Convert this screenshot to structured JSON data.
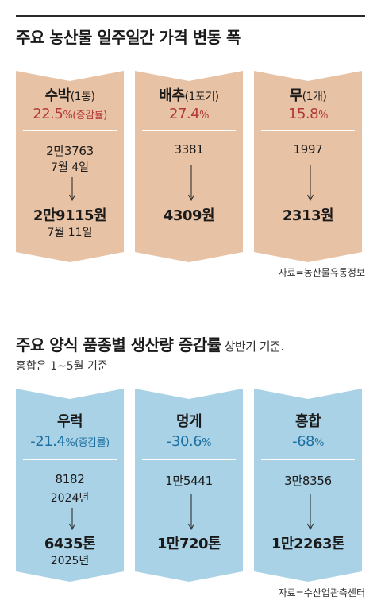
{
  "section1": {
    "title": "주요 농산물 일주일간 가격 변동 폭",
    "source": "자료=농산물유통정보",
    "percent_label": "(증감률)",
    "pct_sign": "%"
  },
  "section2": {
    "title": "주요 양식 품종별 생산량 증감률",
    "title_sub": "상반기 기준.",
    "note": "홍합은 1~5월 기준",
    "source": "자료=수산업관측센터",
    "percent_label": "(증감률)",
    "pct_sign": "%"
  },
  "chart_data": [
    {
      "type": "table",
      "title": "주요 농산물 일주일간 가격 변동 폭",
      "items": [
        {
          "name": "수박",
          "unit": "(1통)",
          "change_pct": "22.5",
          "from": "2만3763",
          "from_date": "7월 4일",
          "to": "2만9115원",
          "to_date": "7월 11일"
        },
        {
          "name": "배추",
          "unit": "(1포기)",
          "change_pct": "27.4",
          "from": "3381",
          "to": "4309원"
        },
        {
          "name": "무",
          "unit": "(1개)",
          "change_pct": "15.8",
          "from": "1997",
          "to": "2313원"
        }
      ]
    },
    {
      "type": "table",
      "title": "주요 양식 품종별 생산량 증감률",
      "items": [
        {
          "name": "우럭",
          "change_pct": "-21.4",
          "from": "8182",
          "from_date": "2024년",
          "to": "6435톤",
          "to_date": "2025년"
        },
        {
          "name": "멍게",
          "change_pct": "-30.6",
          "from": "1만5441",
          "to": "1만720톤"
        },
        {
          "name": "홍합",
          "change_pct": "-68",
          "from": "3만8356",
          "to": "1만2263톤"
        }
      ]
    }
  ],
  "colors": {
    "veg_card": "#e8c2a4",
    "fish_card": "#a9d2e6",
    "veg_pct": "#b2373a",
    "fish_pct": "#1c6fa0"
  }
}
